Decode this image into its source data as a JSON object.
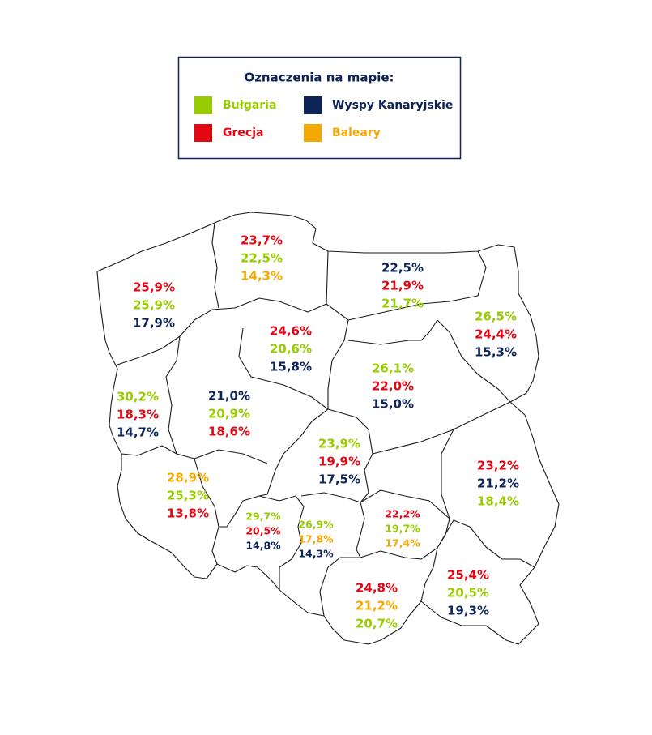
{
  "legend": {
    "title": "Oznaczenia na mapie:",
    "items": [
      {
        "label": "Bułgaria",
        "color": "#99cc00"
      },
      {
        "label": "Wyspy Kanaryjskie",
        "color": "#0d2459"
      },
      {
        "label": "Grecja",
        "color": "#e30613"
      },
      {
        "label": "Baleary",
        "color": "#f5a800"
      }
    ]
  },
  "regions": [
    {
      "values": [
        {
          "label": "23,7%",
          "color": "#e30613"
        },
        {
          "label": "22,5%",
          "color": "#99cc00"
        },
        {
          "label": "14,3%",
          "color": "#f5a800"
        }
      ]
    },
    {
      "values": [
        {
          "label": "22,5%",
          "color": "#0d2459"
        },
        {
          "label": "21,9%",
          "color": "#e30613"
        },
        {
          "label": "21,7%",
          "color": "#99cc00"
        }
      ]
    },
    {
      "values": [
        {
          "label": "25,9%",
          "color": "#e30613"
        },
        {
          "label": "25,9%",
          "color": "#99cc00"
        },
        {
          "label": "17,9%",
          "color": "#0d2459"
        }
      ]
    },
    {
      "values": [
        {
          "label": "26,5%",
          "color": "#99cc00"
        },
        {
          "label": "24,4%",
          "color": "#e30613"
        },
        {
          "label": "15,3%",
          "color": "#0d2459"
        }
      ]
    },
    {
      "values": [
        {
          "label": "24,6%",
          "color": "#e30613"
        },
        {
          "label": "20,6%",
          "color": "#99cc00"
        },
        {
          "label": "15,8%",
          "color": "#0d2459"
        }
      ]
    },
    {
      "values": [
        {
          "label": "26,1%",
          "color": "#99cc00"
        },
        {
          "label": "22,0%",
          "color": "#e30613"
        },
        {
          "label": "15,0%",
          "color": "#0d2459"
        }
      ]
    },
    {
      "values": [
        {
          "label": "30,2%",
          "color": "#99cc00"
        },
        {
          "label": "18,3%",
          "color": "#e30613"
        },
        {
          "label": "14,7%",
          "color": "#0d2459"
        }
      ]
    },
    {
      "values": [
        {
          "label": "21,0%",
          "color": "#0d2459"
        },
        {
          "label": "20,9%",
          "color": "#99cc00"
        },
        {
          "label": "18,6%",
          "color": "#e30613"
        }
      ]
    },
    {
      "values": [
        {
          "label": "23,9%",
          "color": "#99cc00"
        },
        {
          "label": "19,9%",
          "color": "#e30613"
        },
        {
          "label": "17,5%",
          "color": "#0d2459"
        }
      ]
    },
    {
      "values": [
        {
          "label": "23,2%",
          "color": "#e30613"
        },
        {
          "label": "21,2%",
          "color": "#0d2459"
        },
        {
          "label": "18,4%",
          "color": "#99cc00"
        }
      ]
    },
    {
      "values": [
        {
          "label": "28,9%",
          "color": "#f5a800"
        },
        {
          "label": "25,3%",
          "color": "#99cc00"
        },
        {
          "label": "13,8%",
          "color": "#e30613"
        }
      ]
    },
    {
      "values": [
        {
          "label": "29,7%",
          "color": "#99cc00"
        },
        {
          "label": "20,5%",
          "color": "#e30613"
        },
        {
          "label": "14,8%",
          "color": "#0d2459"
        }
      ]
    },
    {
      "values": [
        {
          "label": "26,9%",
          "color": "#99cc00"
        },
        {
          "label": "17,8%",
          "color": "#f5a800"
        },
        {
          "label": "14,3%",
          "color": "#0d2459"
        }
      ]
    },
    {
      "values": [
        {
          "label": "22,2%",
          "color": "#e30613"
        },
        {
          "label": "19,7%",
          "color": "#99cc00"
        },
        {
          "label": "17,4%",
          "color": "#f5a800"
        }
      ]
    },
    {
      "values": [
        {
          "label": "25,4%",
          "color": "#e30613"
        },
        {
          "label": "20,5%",
          "color": "#99cc00"
        },
        {
          "label": "19,3%",
          "color": "#0d2459"
        }
      ]
    },
    {
      "values": [
        {
          "label": "24,8%",
          "color": "#e30613"
        },
        {
          "label": "21,2%",
          "color": "#f5a800"
        },
        {
          "label": "20,7%",
          "color": "#99cc00"
        }
      ]
    }
  ]
}
